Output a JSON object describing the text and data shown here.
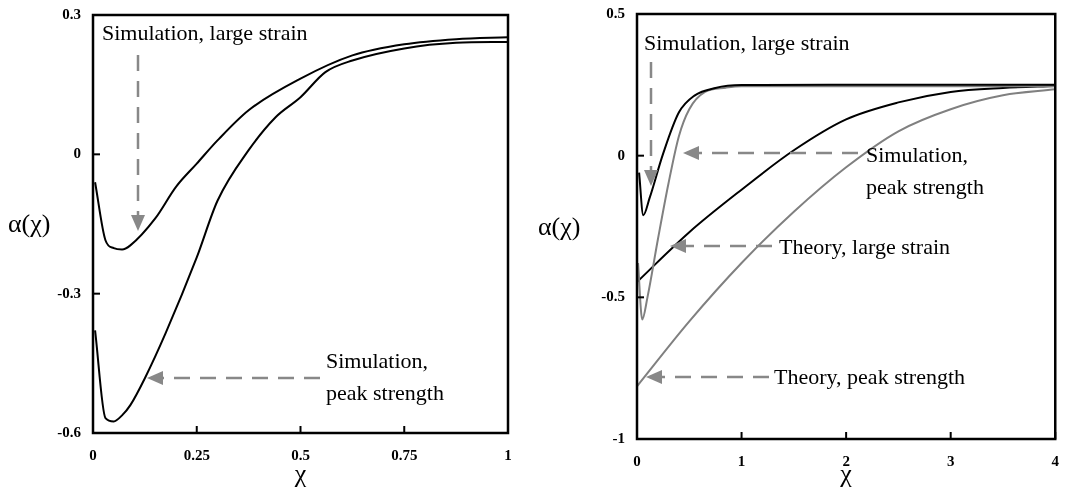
{
  "chart_data": [
    {
      "type": "line",
      "xlabel": "χ",
      "ylabel": "α(χ)",
      "xlim": [
        0,
        1
      ],
      "ylim": [
        -0.6,
        0.3
      ],
      "xticks": [
        0,
        0.25,
        0.5,
        0.75,
        1
      ],
      "yticks": [
        -0.6,
        -0.3,
        0,
        0.3
      ],
      "series": [
        {
          "color": "#000000",
          "x": [
            0.005,
            0.03,
            0.05,
            0.07,
            0.09,
            0.15,
            0.2,
            0.25,
            0.3,
            0.375,
            0.5,
            0.625,
            0.75,
            0.875,
            1
          ],
          "values": [
            -0.06,
            -0.185,
            -0.202,
            -0.205,
            -0.196,
            -0.138,
            -0.07,
            -0.02,
            0.03,
            0.095,
            0.163,
            0.213,
            0.237,
            0.248,
            0.252
          ]
        },
        {
          "color": "#000000",
          "x": [
            0.005,
            0.03,
            0.05,
            0.07,
            0.09,
            0.125,
            0.175,
            0.25,
            0.3,
            0.375,
            0.44,
            0.5,
            0.56,
            0.625,
            0.75,
            0.875,
            1
          ],
          "values": [
            -0.379,
            -0.568,
            -0.575,
            -0.562,
            -0.54,
            -0.482,
            -0.385,
            -0.222,
            -0.1,
            0.009,
            0.08,
            0.123,
            0.177,
            0.202,
            0.228,
            0.24,
            0.242
          ]
        }
      ],
      "annotations": [
        "Simulation, large strain",
        "Simulation, peak strength"
      ]
    },
    {
      "type": "line",
      "xlabel": "χ",
      "ylabel": "α(χ)",
      "xlim": [
        0,
        4
      ],
      "ylim": [
        -1,
        0.5
      ],
      "xticks": [
        0,
        1,
        2,
        3,
        4
      ],
      "yticks": [
        -1,
        -0.5,
        0,
        0.5
      ],
      "series": [
        {
          "color": "#000000",
          "x": [
            0.02,
            0.06,
            0.12,
            0.25,
            0.4,
            0.55,
            0.75,
            1,
            2,
            3,
            4
          ],
          "values": [
            -0.06,
            -0.21,
            -0.15,
            0.007,
            0.152,
            0.212,
            0.239,
            0.249,
            0.25,
            0.25,
            0.25
          ]
        },
        {
          "color": "#808080",
          "x": [
            0.01,
            0.05,
            0.1,
            0.2,
            0.3,
            0.4,
            0.5,
            0.65,
            0.85,
            1,
            2,
            3,
            4
          ],
          "values": [
            -0.379,
            -0.578,
            -0.5,
            -0.295,
            -0.1,
            0.068,
            0.164,
            0.225,
            0.24,
            0.245,
            0.245,
            0.245,
            0.245
          ]
        },
        {
          "color": "#000000",
          "x": [
            0,
            0.5,
            1,
            1.5,
            2,
            2.5,
            3,
            3.5,
            4
          ],
          "values": [
            -0.446,
            -0.27,
            -0.12,
            0.019,
            0.128,
            0.188,
            0.225,
            0.239,
            0.246
          ]
        },
        {
          "color": "#808080",
          "x": [
            0,
            0.5,
            1,
            1.5,
            2,
            2.5,
            3,
            3.5,
            4
          ],
          "values": [
            -0.814,
            -0.585,
            -0.379,
            -0.198,
            -0.041,
            0.086,
            0.164,
            0.213,
            0.234
          ]
        }
      ],
      "annotations": [
        "Simulation, large strain",
        "Simulation, peak strength",
        "Theory, large strain",
        "Theory, peak strength"
      ]
    }
  ]
}
